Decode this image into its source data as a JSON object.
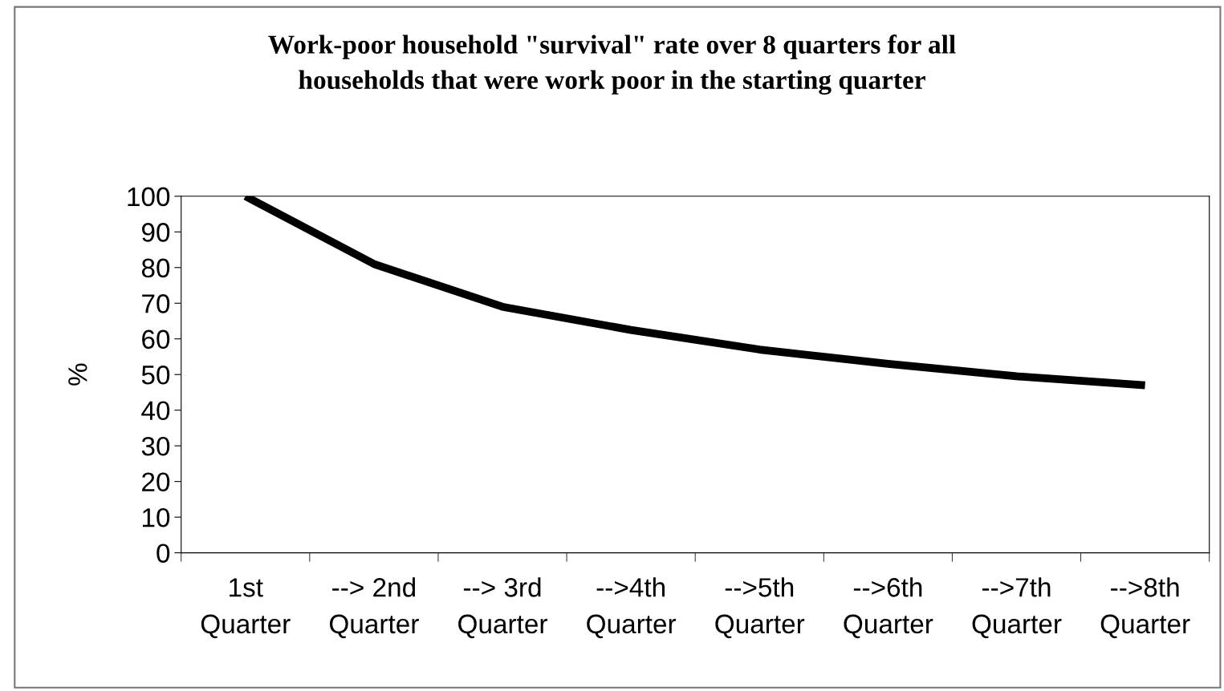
{
  "chart_data": {
    "type": "line",
    "title": "Work-poor household \"survival\" rate over 8 quarters for all\nhouseholds that were work poor in the starting quarter",
    "ylabel": "%",
    "categories": [
      "1st\nQuarter",
      "--> 2nd\nQuarter",
      "--> 3rd\nQuarter",
      "-->4th\nQuarter",
      "-->5th\nQuarter",
      "-->6th\nQuarter",
      "-->7th\nQuarter",
      "-->8th\nQuarter"
    ],
    "series": [
      {
        "color": "#000000",
        "values": [
          100,
          81,
          69,
          62.5,
          57,
          53,
          49.5,
          47
        ]
      }
    ],
    "ylim": [
      0,
      100
    ],
    "yticks": [
      0,
      10,
      20,
      30,
      40,
      50,
      60,
      70,
      80,
      90,
      100
    ],
    "grid": false,
    "legend": false,
    "marker": "none",
    "line_style": "solid"
  }
}
